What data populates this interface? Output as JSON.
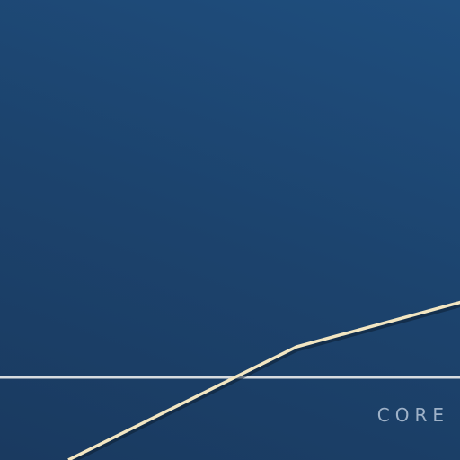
{
  "brand": {
    "wordmark": "CORE"
  },
  "colors": {
    "background_top": "#1f4e7e",
    "background_bottom": "#1a3a60",
    "line": "#f2e6c2",
    "line_shadow": "#0d1f33",
    "wordmark": "#9fb2c8"
  }
}
